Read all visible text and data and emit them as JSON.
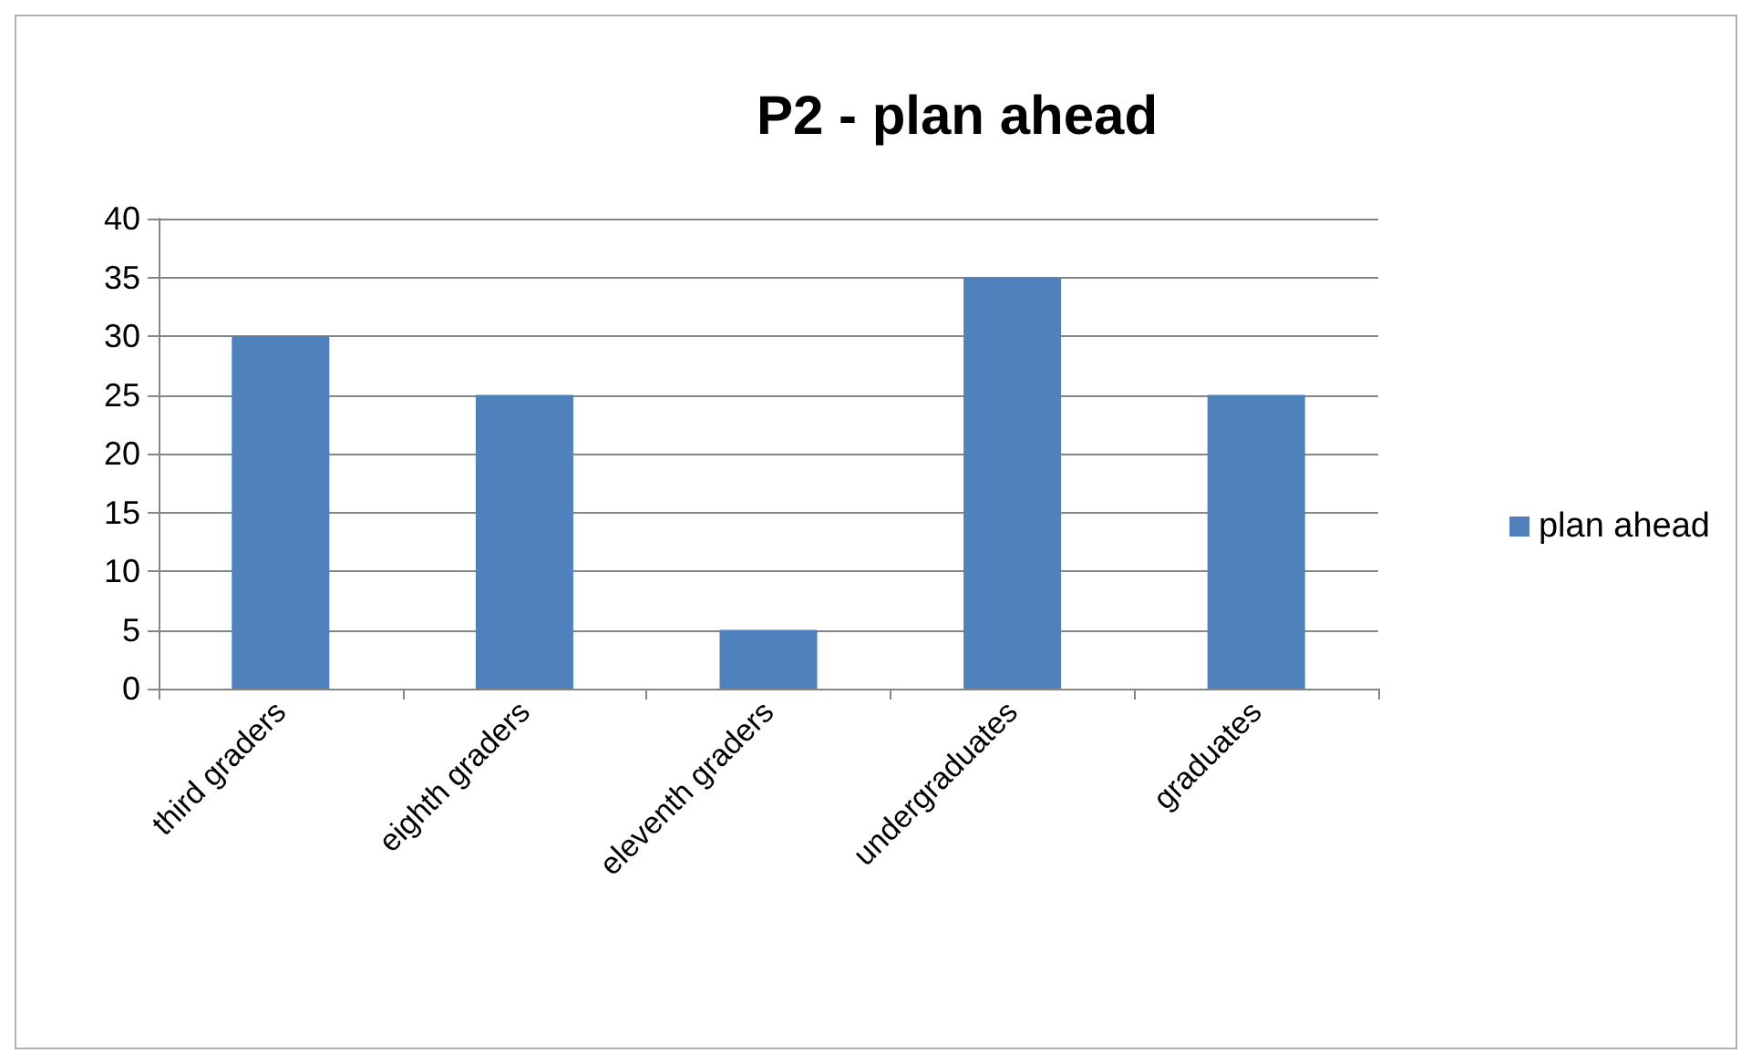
{
  "chart_data": {
    "type": "bar",
    "title": "P2 - plan ahead",
    "categories": [
      "third graders",
      "eighth graders",
      "eleventh graders",
      "undergraduates",
      "graduates"
    ],
    "series": [
      {
        "name": "plan ahead",
        "color": "#4f81bd",
        "values": [
          30,
          25,
          5,
          35,
          25
        ]
      }
    ],
    "ylim": [
      0,
      40
    ],
    "yticks": [
      0,
      5,
      10,
      15,
      20,
      25,
      30,
      35,
      40
    ],
    "grid": "y",
    "legend": "right"
  }
}
